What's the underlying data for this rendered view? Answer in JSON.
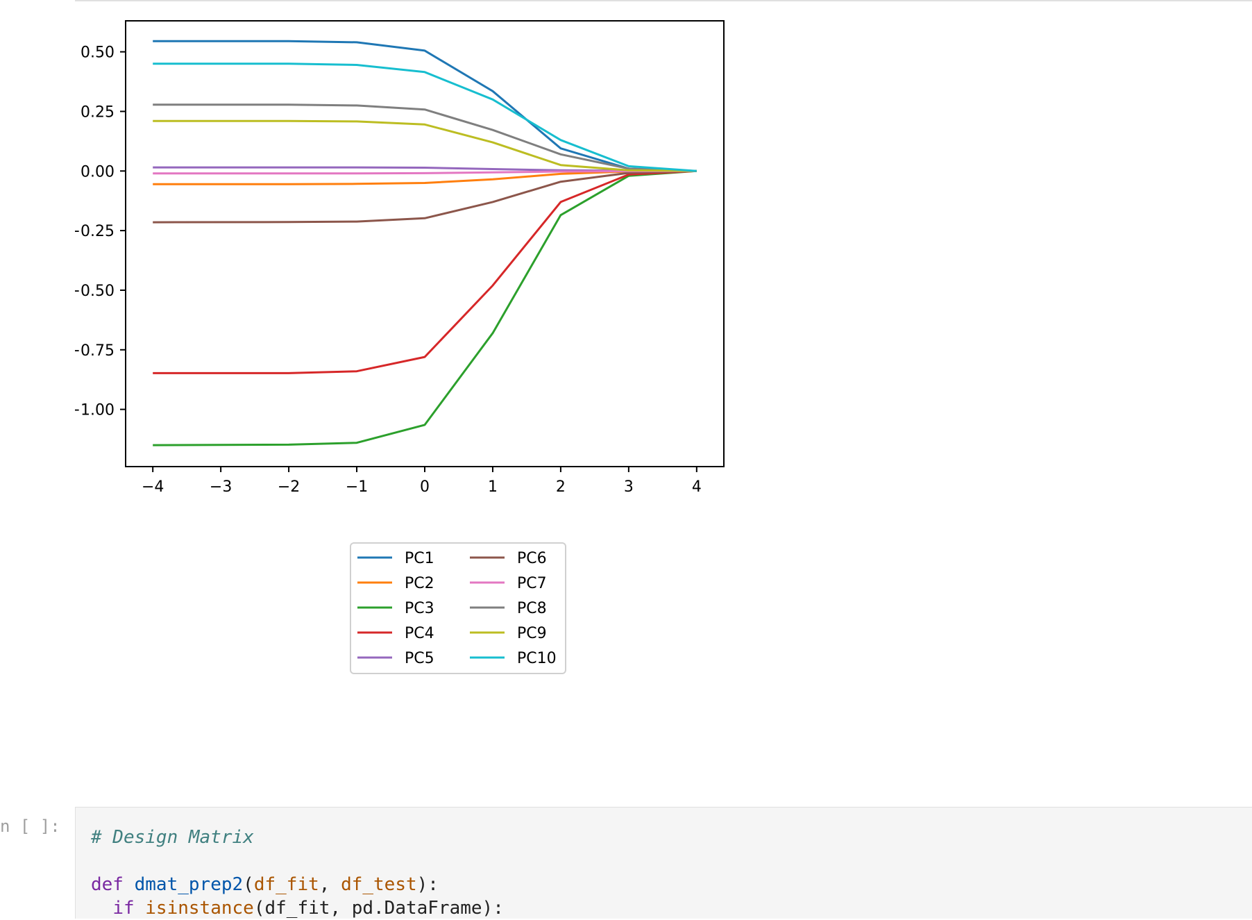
{
  "notebook": {
    "prompt": "n [ ]:",
    "code_lines": [
      {
        "tokens": [
          {
            "t": "# Design Matrix",
            "c": "comment"
          }
        ]
      },
      {
        "tokens": []
      },
      {
        "tokens": [
          {
            "t": "def ",
            "c": "kw"
          },
          {
            "t": "dmat_prep2",
            "c": "def"
          },
          {
            "t": "(",
            "c": ""
          },
          {
            "t": "df_fit",
            "c": "var"
          },
          {
            "t": ", ",
            "c": ""
          },
          {
            "t": "df_test",
            "c": "var"
          },
          {
            "t": "):",
            "c": ""
          }
        ]
      },
      {
        "tokens": [
          {
            "t": "  ",
            "c": ""
          },
          {
            "t": "if ",
            "c": "kw"
          },
          {
            "t": "isinstance",
            "c": "builtin"
          },
          {
            "t": "(df_fit, pd.DataFrame):",
            "c": ""
          }
        ]
      }
    ]
  },
  "chart_data": {
    "type": "line",
    "title": "",
    "xlabel": "",
    "ylabel": "",
    "xlim": [
      -4.4,
      4.4
    ],
    "ylim": [
      -1.24,
      0.63
    ],
    "x_ticks": [
      -4,
      -3,
      -2,
      -1,
      0,
      1,
      2,
      3,
      4
    ],
    "x_tick_labels": [
      "−4",
      "−3",
      "−2",
      "−1",
      "0",
      "1",
      "2",
      "3",
      "4"
    ],
    "y_ticks": [
      0.5,
      0.25,
      0.0,
      -0.25,
      -0.5,
      -0.75,
      -1.0
    ],
    "y_tick_labels": [
      "0.50",
      "0.25",
      "0.00",
      "−0.25",
      "−0.50",
      "−0.75",
      "−1.00"
    ],
    "grid": false,
    "legend_position": "below-center",
    "legend_columns": 2,
    "x": [
      -4,
      -2,
      -1,
      0,
      1,
      2,
      3,
      4
    ],
    "series": [
      {
        "name": "PC1",
        "color": "#1f77b4",
        "values": [
          0.545,
          0.545,
          0.54,
          0.505,
          0.335,
          0.095,
          0.01,
          0.0
        ]
      },
      {
        "name": "PC2",
        "color": "#ff7f0e",
        "values": [
          -0.055,
          -0.055,
          -0.054,
          -0.05,
          -0.035,
          -0.012,
          -0.002,
          0.0
        ]
      },
      {
        "name": "PC3",
        "color": "#2ca02c",
        "values": [
          -1.15,
          -1.148,
          -1.14,
          -1.065,
          -0.68,
          -0.185,
          -0.02,
          0.0
        ]
      },
      {
        "name": "PC4",
        "color": "#d62728",
        "values": [
          -0.848,
          -0.848,
          -0.84,
          -0.78,
          -0.48,
          -0.13,
          -0.015,
          0.0
        ]
      },
      {
        "name": "PC5",
        "color": "#9467bd",
        "values": [
          0.015,
          0.015,
          0.015,
          0.014,
          0.008,
          0.003,
          0.001,
          0.0
        ]
      },
      {
        "name": "PC6",
        "color": "#8c564b",
        "values": [
          -0.215,
          -0.214,
          -0.212,
          -0.198,
          -0.13,
          -0.045,
          -0.008,
          0.0
        ]
      },
      {
        "name": "PC7",
        "color": "#e377c2",
        "values": [
          -0.01,
          -0.01,
          -0.01,
          -0.009,
          -0.006,
          -0.002,
          -0.001,
          0.0
        ]
      },
      {
        "name": "PC8",
        "color": "#7f7f7f",
        "values": [
          0.278,
          0.278,
          0.275,
          0.258,
          0.172,
          0.07,
          0.01,
          0.0
        ]
      },
      {
        "name": "PC9",
        "color": "#bcbd22",
        "values": [
          0.21,
          0.21,
          0.208,
          0.195,
          0.12,
          0.025,
          0.003,
          0.0
        ]
      },
      {
        "name": "PC10",
        "color": "#17becf",
        "values": [
          0.45,
          0.45,
          0.445,
          0.415,
          0.3,
          0.13,
          0.02,
          0.0
        ]
      }
    ]
  }
}
